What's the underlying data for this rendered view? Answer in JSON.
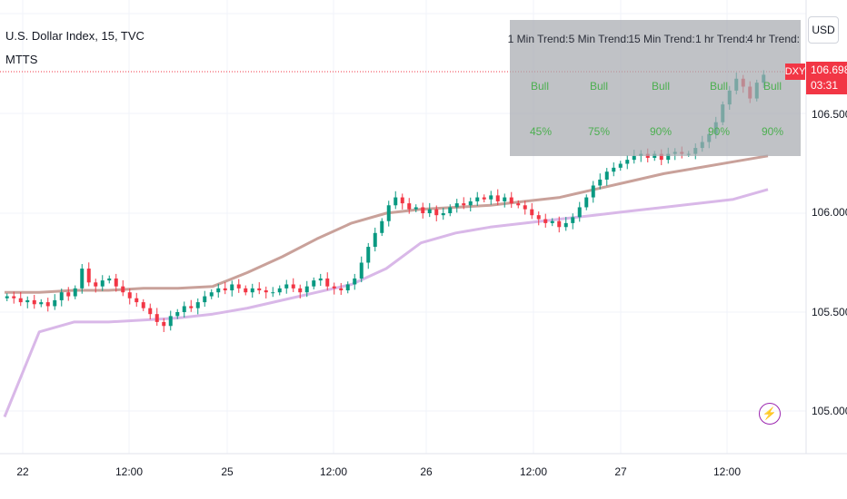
{
  "header": {
    "symbol_line": "U.S. Dollar Index, 15, TVC",
    "indicator_name": "MTTS"
  },
  "currency": "USD",
  "price_badge": {
    "symbol": "DXY",
    "price": "106.698",
    "countdown": "03:31",
    "color": "#f23645"
  },
  "trend_table": {
    "columns": [
      {
        "header": "1 Min Trend:",
        "direction": "Bull",
        "percent": "45%"
      },
      {
        "header": "5 Min Trend:",
        "direction": "Bull",
        "percent": "75%"
      },
      {
        "header": "15 Min Trend:",
        "direction": "Bull",
        "percent": "90%"
      },
      {
        "header": "1 hr Trend:",
        "direction": "Bull",
        "percent": "90%"
      },
      {
        "header": "4 hr Trend:",
        "direction": "Bull",
        "percent": "90%"
      }
    ],
    "bull_color": "#4caf50"
  },
  "icons": {
    "replay": "lightning-bolt-icon"
  },
  "chart_data": {
    "type": "candlestick",
    "title": "U.S. Dollar Index, 15, TVC",
    "y_ticks": [
      "106.000",
      "105.500",
      "105.000"
    ],
    "x_ticks": [
      "22",
      "12:00",
      "25",
      "12:00",
      "26",
      "12:00",
      "27",
      "12:00"
    ],
    "ylim": [
      104.97,
      106.78
    ],
    "last_price": 106.698,
    "candle_color_up": "#089981",
    "candle_color_down": "#f23645",
    "grid": true,
    "close_series": [
      105.58,
      105.57,
      105.55,
      105.56,
      105.54,
      105.55,
      105.53,
      105.56,
      105.6,
      105.58,
      105.62,
      105.72,
      105.65,
      105.63,
      105.66,
      105.67,
      105.63,
      105.6,
      105.57,
      105.55,
      105.52,
      105.49,
      105.45,
      105.43,
      105.48,
      105.5,
      105.53,
      105.52,
      105.55,
      105.58,
      105.6,
      105.62,
      105.61,
      105.64,
      105.62,
      105.6,
      105.62,
      105.61,
      105.6,
      105.6,
      105.62,
      105.64,
      105.62,
      105.6,
      105.63,
      105.66,
      105.67,
      105.63,
      105.62,
      105.61,
      105.64,
      105.67,
      105.75,
      105.83,
      105.9,
      105.96,
      106.04,
      106.08,
      106.05,
      106.02,
      106.03,
      106.0,
      106.02,
      105.99,
      106.0,
      106.03,
      106.05,
      106.04,
      106.06,
      106.08,
      106.07,
      106.09,
      106.06,
      106.08,
      106.05,
      106.04,
      106.02,
      105.99,
      105.97,
      105.95,
      105.96,
      105.93,
      105.95,
      105.98,
      106.03,
      106.08,
      106.14,
      106.17,
      106.21,
      106.23,
      106.25,
      106.27,
      106.29,
      106.3,
      106.28,
      106.3,
      106.27,
      106.3,
      106.31,
      106.3,
      106.3,
      106.33,
      106.36,
      106.4,
      106.46,
      106.55,
      106.62,
      106.68,
      106.64,
      106.58,
      106.66,
      106.7
    ],
    "ma_series": [
      {
        "name": "",
        "color": "#c9a19a",
        "values": [
          105.6,
          105.6,
          105.61,
          105.61,
          105.62,
          105.62,
          105.63,
          105.7,
          105.78,
          105.87,
          105.95,
          106.0,
          106.02,
          106.03,
          106.04,
          106.06,
          106.08,
          106.12,
          106.16,
          106.2,
          106.23,
          106.26,
          106.29
        ]
      },
      {
        "name": "",
        "color": "#d9b8e8",
        "values": [
          104.97,
          105.4,
          105.45,
          105.45,
          105.46,
          105.47,
          105.49,
          105.52,
          105.56,
          105.6,
          105.64,
          105.72,
          105.85,
          105.9,
          105.93,
          105.95,
          105.97,
          105.99,
          106.01,
          106.03,
          106.05,
          106.07,
          106.12
        ]
      }
    ]
  }
}
